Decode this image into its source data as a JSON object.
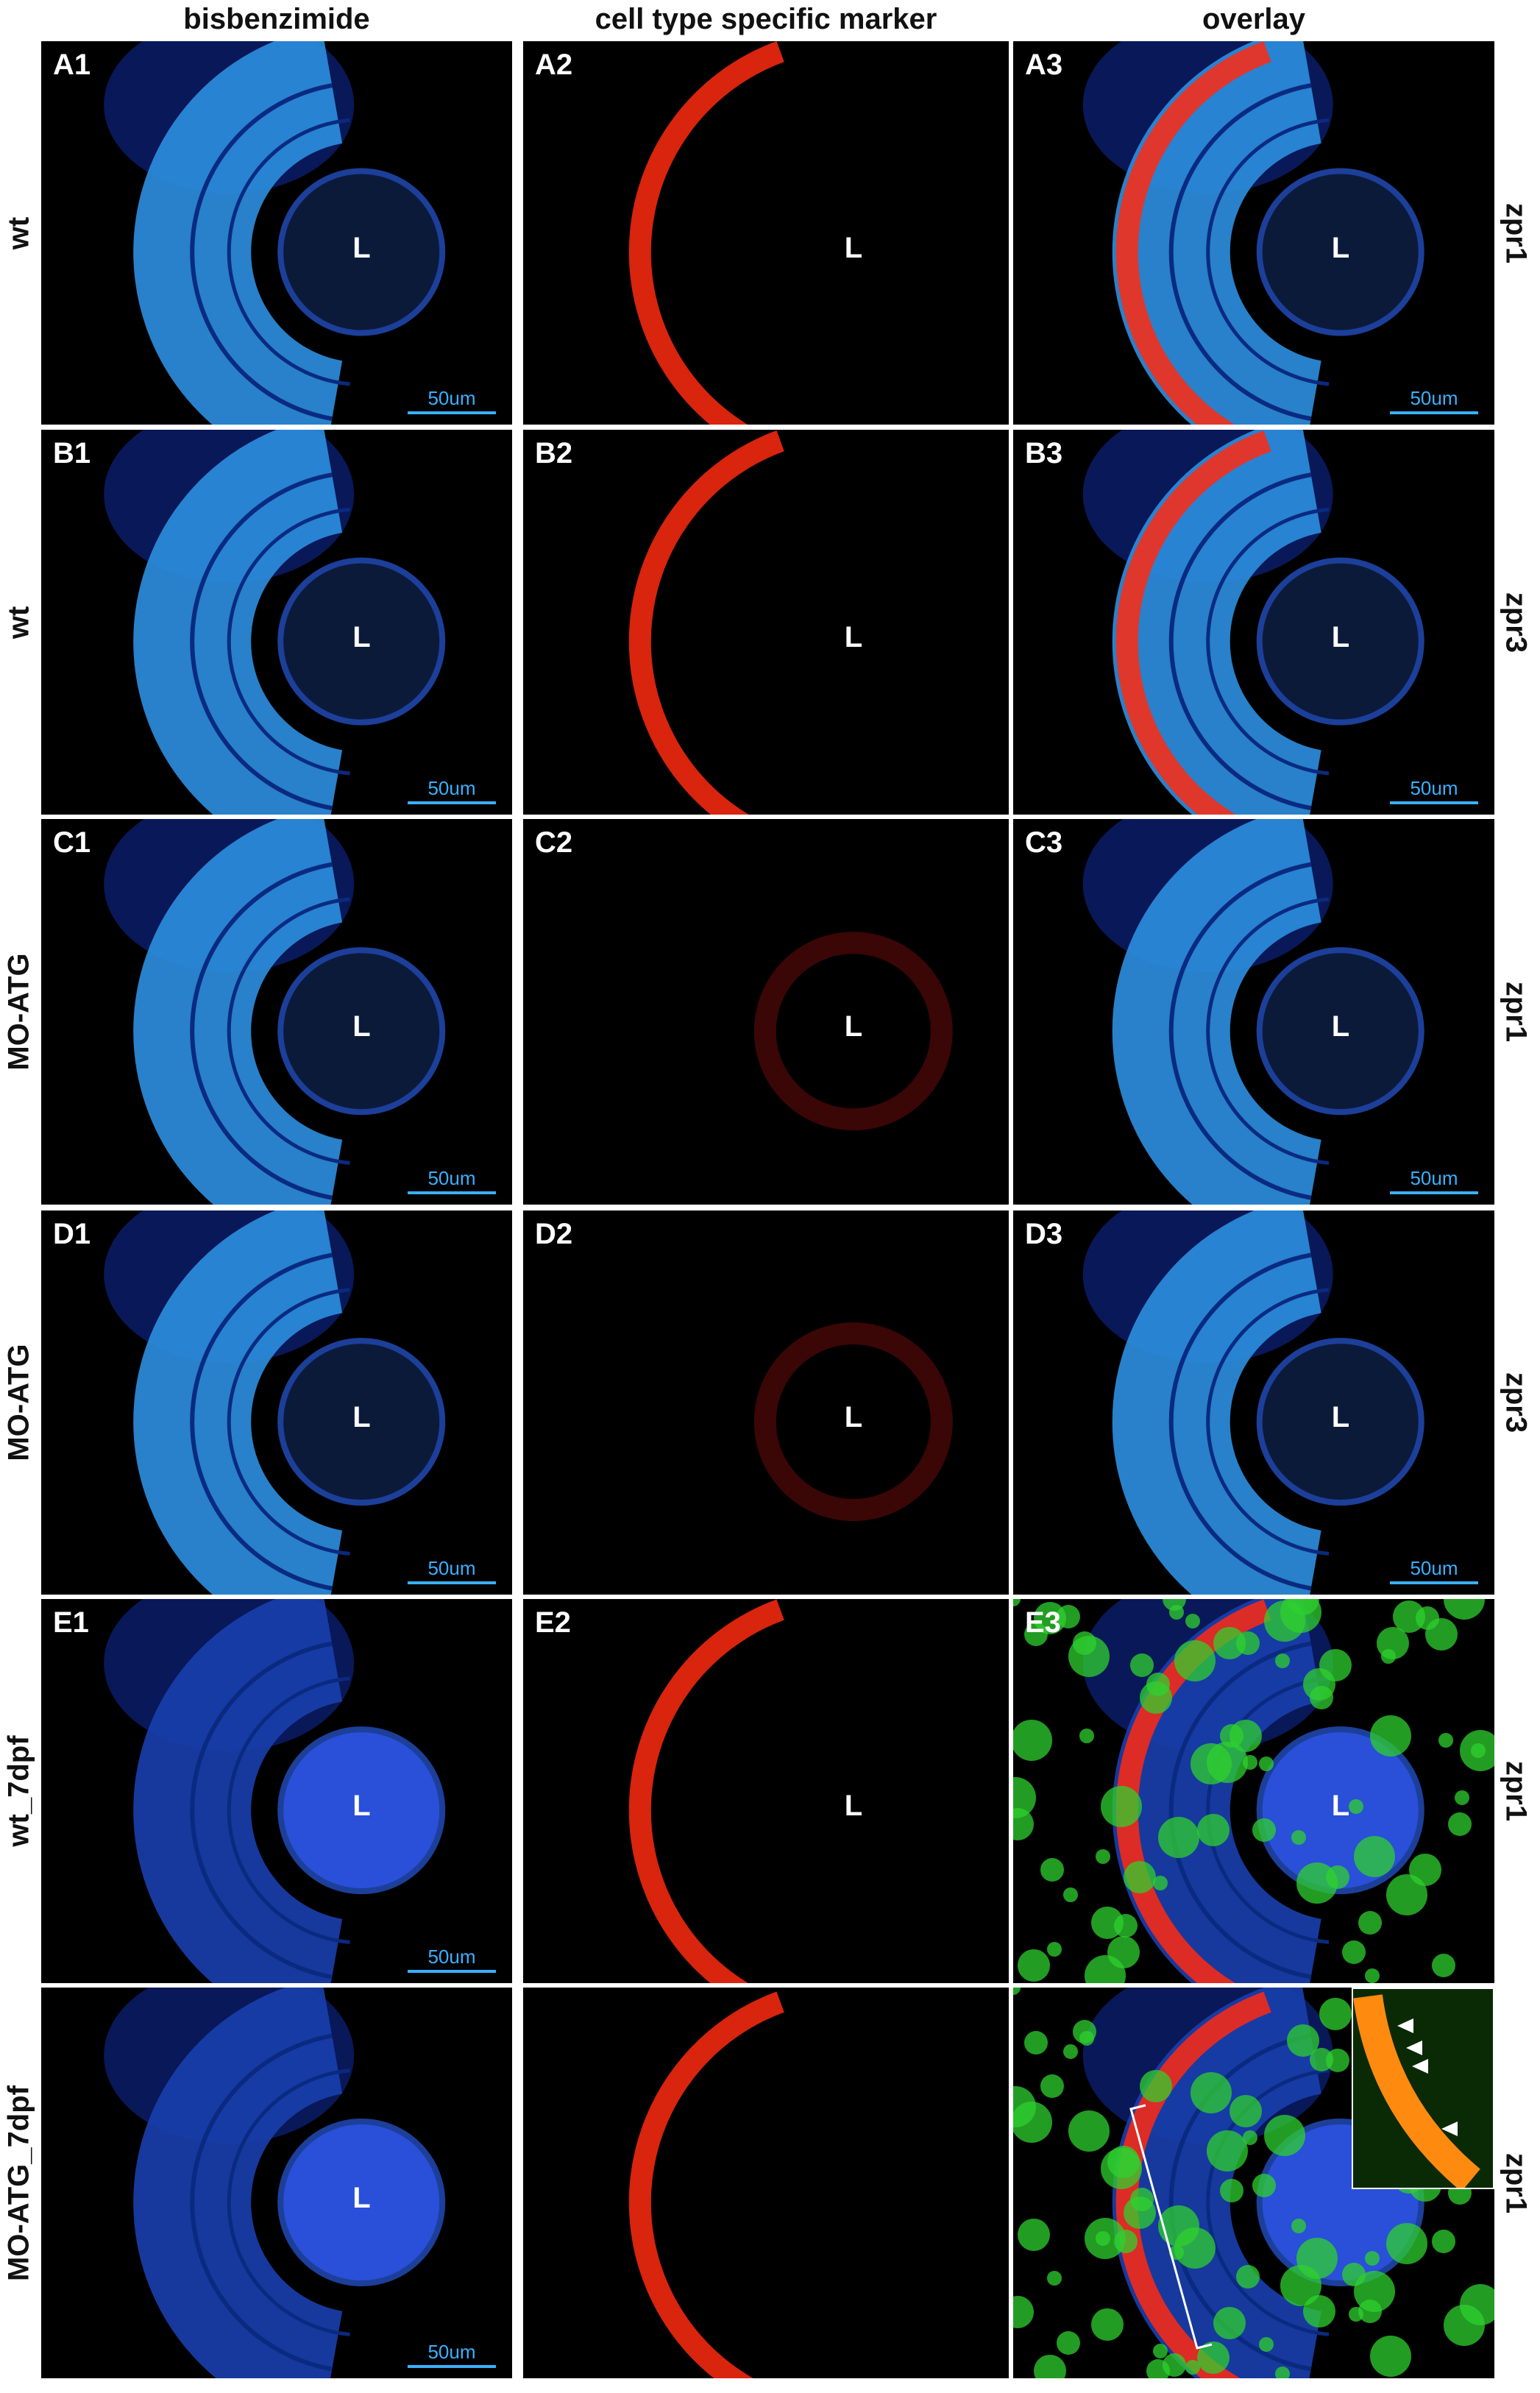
{
  "header": {
    "columns": [
      "bisbenzimide",
      "cell type specific marker",
      "overlay"
    ]
  },
  "rows": [
    {
      "condition": "wt",
      "marker": "zpr1",
      "panels": [
        {
          "label": "A1",
          "lens": "L",
          "scale_bar": "50um"
        },
        {
          "label": "A2",
          "lens": "L"
        },
        {
          "label": "A3",
          "lens": "L",
          "scale_bar": "50um"
        }
      ]
    },
    {
      "condition": "wt",
      "marker": "zpr3",
      "panels": [
        {
          "label": "B1",
          "lens": "L",
          "scale_bar": "50um"
        },
        {
          "label": "B2",
          "lens": "L"
        },
        {
          "label": "B3",
          "lens": "L",
          "scale_bar": "50um"
        }
      ]
    },
    {
      "condition": "MO-ATG",
      "marker": "zpr1",
      "panels": [
        {
          "label": "C1",
          "lens": "L",
          "scale_bar": "50um"
        },
        {
          "label": "C2",
          "lens": "L"
        },
        {
          "label": "C3",
          "lens": "L",
          "scale_bar": "50um"
        }
      ]
    },
    {
      "condition": "MO-ATG",
      "marker": "zpr3",
      "panels": [
        {
          "label": "D1",
          "lens": "L",
          "scale_bar": "50um"
        },
        {
          "label": "D2",
          "lens": "L"
        },
        {
          "label": "D3",
          "lens": "L",
          "scale_bar": "50um"
        }
      ]
    },
    {
      "condition": "wt_7dpf",
      "marker": "zpr1",
      "panels": [
        {
          "label": "E1",
          "lens": "L",
          "scale_bar": "50um"
        },
        {
          "label": "E2",
          "lens": "L"
        },
        {
          "label": "E3",
          "lens": "L"
        }
      ]
    },
    {
      "condition": "MO-ATG_7dpf",
      "marker": "zpr1",
      "panels": [
        {
          "lens": "L",
          "scale_bar": "50um"
        },
        {},
        {}
      ]
    }
  ]
}
